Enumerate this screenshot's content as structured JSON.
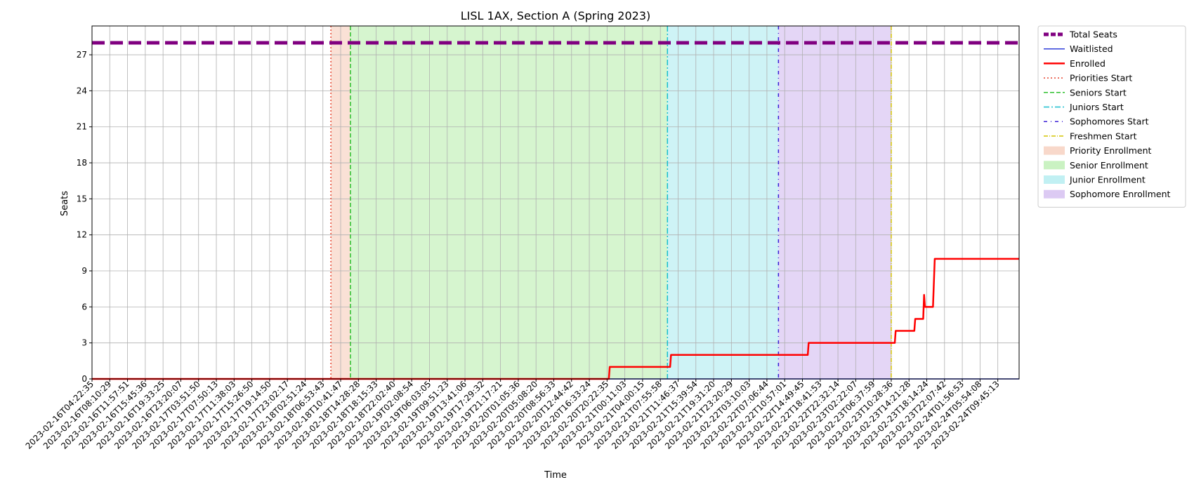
{
  "chart_data": {
    "type": "line",
    "title": "LISL 1AX, Section A (Spring 2023)",
    "xlabel": "Time",
    "ylabel": "Seats",
    "ylim": [
      0,
      29.4
    ],
    "yticks": [
      0,
      3,
      6,
      9,
      12,
      15,
      18,
      21,
      24,
      27
    ],
    "grid": true,
    "legend_position": "outside-right",
    "x_tick_labels": [
      "2023-02-16T04:22:35",
      "2023-02-16T08:10:29",
      "2023-02-16T11:57:51",
      "2023-02-16T15:45:36",
      "2023-02-16T19:33:25",
      "2023-02-16T23:20:07",
      "2023-02-17T03:51:50",
      "2023-02-17T07:50:13",
      "2023-02-17T11:38:03",
      "2023-02-17T15:26:50",
      "2023-02-17T19:14:50",
      "2023-02-17T23:02:17",
      "2023-02-18T02:51:24",
      "2023-02-18T06:53:43",
      "2023-02-18T10:41:47",
      "2023-02-18T14:28:28",
      "2023-02-18T18:15:33",
      "2023-02-18T22:02:40",
      "2023-02-19T02:08:54",
      "2023-02-19T06:03:05",
      "2023-02-19T09:51:23",
      "2023-02-19T13:41:06",
      "2023-02-19T17:29:32",
      "2023-02-19T21:17:21",
      "2023-02-20T01:05:36",
      "2023-02-20T05:08:20",
      "2023-02-20T08:56:33",
      "2023-02-20T12:44:42",
      "2023-02-20T16:33:24",
      "2023-02-20T20:22:35",
      "2023-02-21T00:11:03",
      "2023-02-21T04:00:15",
      "2023-02-21T07:55:58",
      "2023-02-21T11:46:37",
      "2023-02-21T15:39:54",
      "2023-02-21T19:31:20",
      "2023-02-21T23:20:29",
      "2023-02-22T03:10:03",
      "2023-02-22T07:06:44",
      "2023-02-22T10:57:01",
      "2023-02-22T14:49:45",
      "2023-02-22T18:41:53",
      "2023-02-22T22:32:14",
      "2023-02-23T02:22:07",
      "2023-02-23T06:37:59",
      "2023-02-23T10:28:36",
      "2023-02-23T14:21:28",
      "2023-02-23T18:14:24",
      "2023-02-23T22:07:42",
      "2023-02-24T01:56:53",
      "2023-02-24T05:54:08",
      "2023-02-24T09:45:13"
    ],
    "x_range_index": [
      0,
      52.2
    ],
    "phase_starts": [
      {
        "name": "Priorities Start",
        "x_index": 13.45,
        "color": "#e8432e",
        "dash": "2,3"
      },
      {
        "name": "Seniors Start",
        "x_index": 14.55,
        "color": "#2cbf2c",
        "dash": "6,3"
      },
      {
        "name": "Juniors Start",
        "x_index": 32.4,
        "color": "#17becf",
        "dash": "8,3,2,3"
      },
      {
        "name": "Sophomores Start",
        "x_index": 38.65,
        "color": "#3a1fd6",
        "dash": "5,5,1,5"
      },
      {
        "name": "Freshmen Start",
        "x_index": 45.0,
        "color": "#d4c400",
        "dash": "6,2,1,2"
      }
    ],
    "phase_spans": [
      {
        "name": "Priority Enrollment",
        "from": 13.45,
        "to": 14.55,
        "color": "#f5c8b4"
      },
      {
        "name": "Senior Enrollment",
        "from": 14.55,
        "to": 32.4,
        "color": "#b4eda8"
      },
      {
        "name": "Junior Enrollment",
        "from": 32.4,
        "to": 38.65,
        "color": "#a6e9ee"
      },
      {
        "name": "Sophomore Enrollment",
        "from": 38.65,
        "to": 45.0,
        "color": "#cdb4ee"
      }
    ],
    "series": [
      {
        "name": "Total Seats",
        "color": "#800080",
        "style": "dashed-thick",
        "points": [
          [
            0,
            28
          ],
          [
            52.2,
            28
          ]
        ]
      },
      {
        "name": "Waitlisted",
        "color": "#1f2fd6",
        "style": "solid-thin",
        "points": [
          [
            0,
            0
          ],
          [
            52.2,
            0
          ]
        ]
      },
      {
        "name": "Enrolled",
        "color": "#ff0000",
        "style": "solid",
        "points": [
          [
            0,
            0
          ],
          [
            29.1,
            0
          ],
          [
            29.15,
            1
          ],
          [
            32.55,
            1
          ],
          [
            32.6,
            2
          ],
          [
            40.3,
            2
          ],
          [
            40.35,
            3
          ],
          [
            45.2,
            3
          ],
          [
            45.25,
            4
          ],
          [
            46.3,
            4
          ],
          [
            46.35,
            5
          ],
          [
            46.8,
            5
          ],
          [
            46.85,
            7
          ],
          [
            46.9,
            6
          ],
          [
            47.35,
            6
          ],
          [
            47.45,
            10
          ],
          [
            52.2,
            10
          ]
        ]
      }
    ],
    "legend": [
      {
        "label": "Total Seats",
        "kind": "line",
        "color": "#800080",
        "dash": "7,3",
        "width": 5
      },
      {
        "label": "Waitlisted",
        "kind": "line",
        "color": "#1f2fd6",
        "dash": "",
        "width": 1.3
      },
      {
        "label": "Enrolled",
        "kind": "line",
        "color": "#ff0000",
        "dash": "",
        "width": 2.5
      },
      {
        "label": "Priorities Start",
        "kind": "line",
        "color": "#e8432e",
        "dash": "2,3",
        "width": 1.5
      },
      {
        "label": "Seniors Start",
        "kind": "line",
        "color": "#2cbf2c",
        "dash": "6,3",
        "width": 1.5
      },
      {
        "label": "Juniors Start",
        "kind": "line",
        "color": "#17becf",
        "dash": "8,3,2,3",
        "width": 1.5
      },
      {
        "label": "Sophomores Start",
        "kind": "line",
        "color": "#3a1fd6",
        "dash": "5,5,1,5",
        "width": 1.5
      },
      {
        "label": "Freshmen Start",
        "kind": "line",
        "color": "#d4c400",
        "dash": "6,2,1,2",
        "width": 1.5
      },
      {
        "label": "Priority Enrollment",
        "kind": "patch",
        "color": "#f5c8b4"
      },
      {
        "label": "Senior Enrollment",
        "kind": "patch",
        "color": "#b4eda8"
      },
      {
        "label": "Junior Enrollment",
        "kind": "patch",
        "color": "#a6e9ee"
      },
      {
        "label": "Sophomore Enrollment",
        "kind": "patch",
        "color": "#cdb4ee"
      }
    ]
  }
}
